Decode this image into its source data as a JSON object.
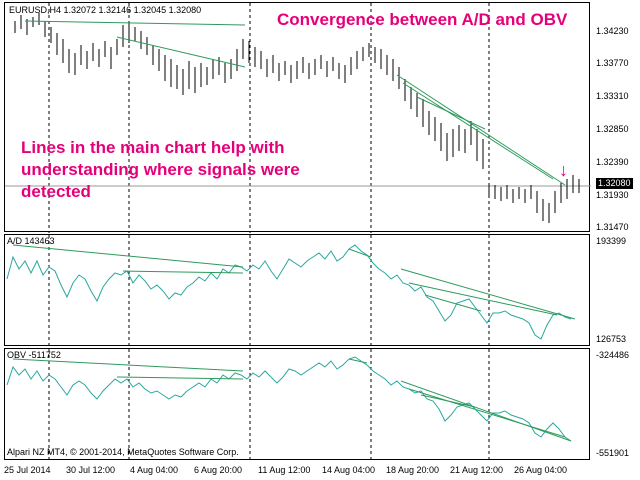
{
  "main": {
    "symbol_line": "EURUSD,H4  1.32072 1.32146 1.32045 1.32080",
    "title": "Convergence between A/D and OBV",
    "note": "Lines in the main chart help with understanding where signals were detected",
    "price_ticks": [
      "1.34230",
      "1.33770",
      "1.33310",
      "1.32850",
      "1.32390",
      "1.31930",
      "1.31470"
    ],
    "current_price": "1.32080",
    "arrow_glyph": "↓"
  },
  "ad": {
    "label": "A/D 143463",
    "ticks": [
      "193399",
      "126753"
    ]
  },
  "obv": {
    "label": "OBV -511752",
    "ticks": [
      "-324486",
      "-551901"
    ]
  },
  "footer": {
    "copyright": "Alpari NZ MT4, © 2001-2014, MetaQuotes Software Corp."
  },
  "time_axis": [
    "25 Jul 2014",
    "30 Jul 12:00",
    "4 Aug 04:00",
    "6 Aug 20:00",
    "11 Aug 12:00",
    "14 Aug 04:00",
    "18 Aug 20:00",
    "21 Aug 12:00",
    "26 Aug 04:00"
  ],
  "colors": {
    "candle": "#000000",
    "indicator": "#2aa7a0",
    "trendline": "#2e9a5c",
    "annotation": "#e5007a"
  }
}
